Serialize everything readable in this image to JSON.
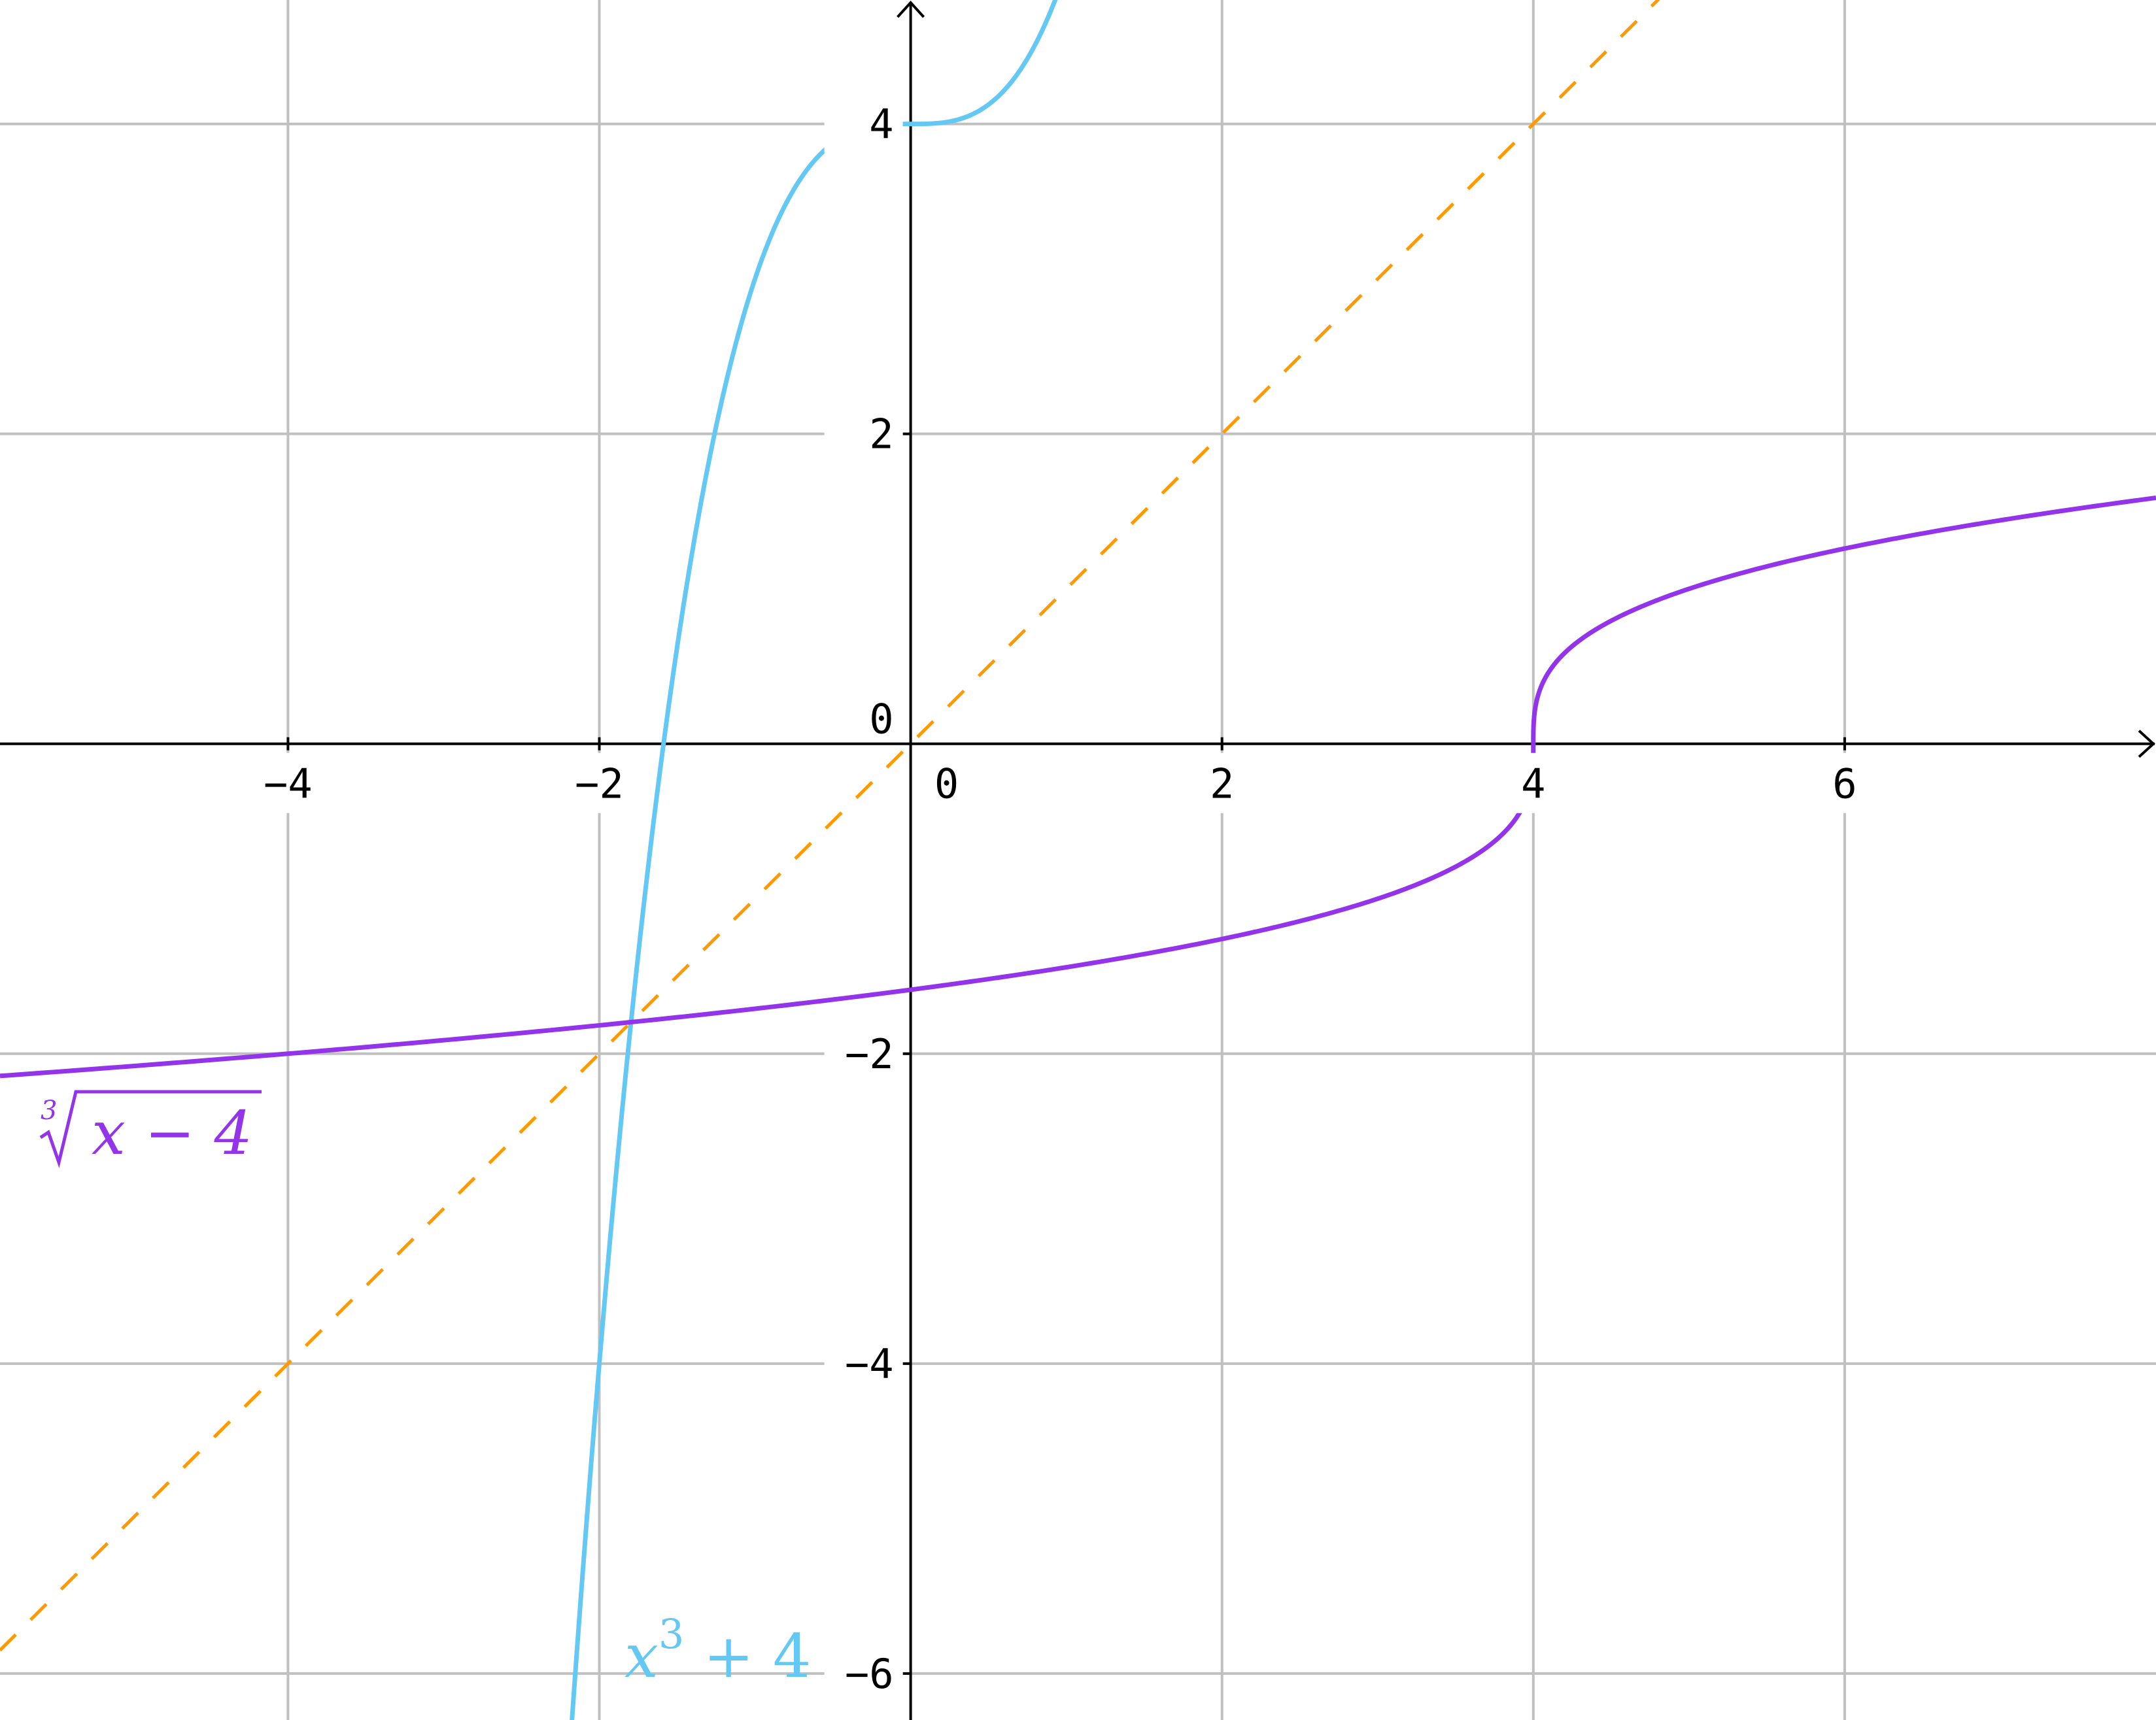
{
  "chart_data": {
    "type": "line",
    "title": "",
    "xlabel": "",
    "ylabel": "",
    "xlim": [
      -5.85,
      8.0
    ],
    "ylim": [
      -6.3,
      4.8
    ],
    "grid": true,
    "x_ticks": [
      -4,
      -2,
      2,
      4,
      6
    ],
    "x_tick_labels": [
      "−4",
      "−2",
      "2",
      "4",
      "6"
    ],
    "y_ticks": [
      -6,
      -4,
      -2,
      2,
      4
    ],
    "y_tick_labels": [
      "−6",
      "−4",
      "−2",
      "2",
      "4"
    ],
    "origin_labels": {
      "x": "0",
      "y": "0"
    },
    "series": [
      {
        "name": "x³ + 4",
        "label_base": "x",
        "label_sup": "3",
        "label_rest": " + 4",
        "function": "x^3 + 4",
        "color": "#64c8f5",
        "style": "solid",
        "sample_x": [
          -2.2,
          -2,
          -1.5,
          -1,
          -0.5,
          0,
          0.5,
          0.94
        ],
        "sample_y": [
          -6.65,
          -4,
          0.63,
          3,
          3.88,
          4,
          4.13,
          4.83
        ]
      },
      {
        "name": "∛(x − 4)",
        "label_root_index": "3",
        "label_radicand": "x − 4",
        "function": "cbrt(x - 4)",
        "color": "#9333ea",
        "style": "solid",
        "sample_x": [
          -5.85,
          -4,
          -2,
          0,
          2,
          4,
          6,
          8
        ],
        "sample_y": [
          -2.14,
          -2,
          -1.82,
          -1.59,
          -1.26,
          0,
          1.26,
          1.59
        ]
      },
      {
        "function": "x",
        "color": "#ff9900",
        "style": "dashed",
        "sample_x": [
          -5.85,
          0,
          4.8
        ],
        "sample_y": [
          -5.85,
          0,
          4.8
        ]
      }
    ]
  }
}
